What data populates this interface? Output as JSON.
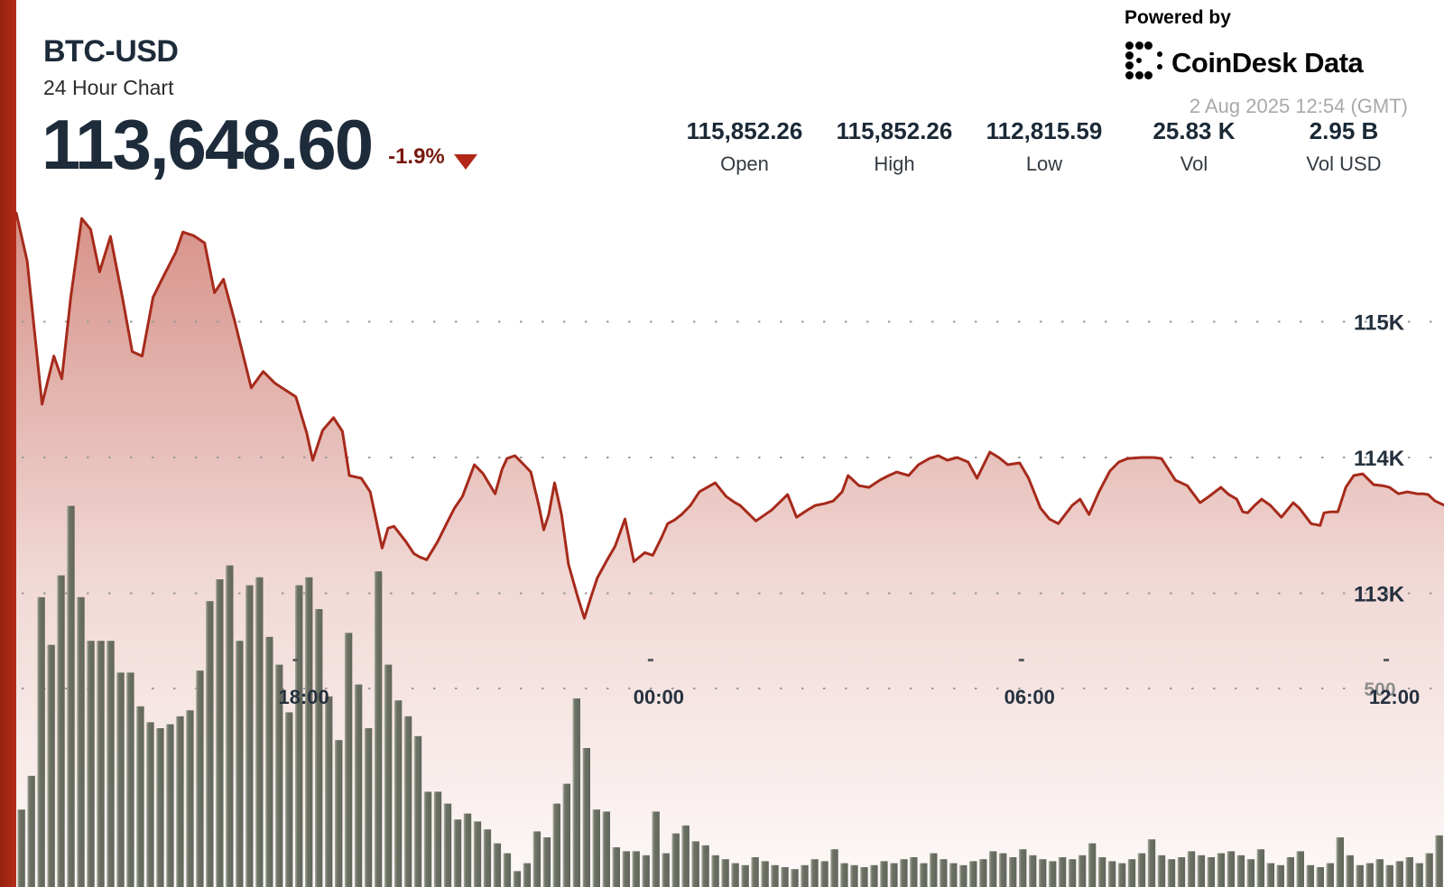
{
  "header": {
    "symbol": "BTC-USD",
    "period": "24 Hour Chart",
    "price": "113,648.60",
    "change_pct": "-1.9%",
    "direction": "down"
  },
  "brand": {
    "powered_by": "Powered by",
    "name": "CoinDesk Data",
    "timestamp": "2 Aug 2025 12:54 (GMT)"
  },
  "stats": [
    {
      "value": "115,852.26",
      "label": "Open"
    },
    {
      "value": "115,852.26",
      "label": "High"
    },
    {
      "value": "112,815.59",
      "label": "Low"
    },
    {
      "value": "25.83 K",
      "label": "Vol"
    },
    {
      "value": "2.95 B",
      "label": "Vol USD"
    }
  ],
  "colors": {
    "accent_red": "#b02a18",
    "line_red": "#a62a1b",
    "fill_red": "#b02a18",
    "volume_bar": "#6d7265",
    "volume_bar_highlight": "#a9ae9e",
    "navy_text": "#25313e",
    "grid_dot": "#9a9a9a",
    "muted_text": "#8d8d8d",
    "change_red": "#78190e"
  },
  "chart_data": {
    "type": "area",
    "title": "BTC-USD 24 Hour Chart",
    "legend": false,
    "grid": "dotted horizontal",
    "open": 115852.26,
    "high": 115852.26,
    "low": 112815.59,
    "last": 113648.6,
    "change_pct": -1.9,
    "volume_display": "25.83 K",
    "volume_usd_display": "2.95 B",
    "x_axis": {
      "unit": "minutes from window start (12:54 GMT)",
      "range": [
        0,
        1440
      ],
      "ticks": [
        {
          "label": "18:00",
          "t": 290
        },
        {
          "label": "00:00",
          "t": 648
        },
        {
          "label": "06:00",
          "t": 1022
        },
        {
          "label": "12:00",
          "t": 1390
        }
      ]
    },
    "y_axis": {
      "unit": "USD",
      "ticks": [
        {
          "label": "115K",
          "value": 115000
        },
        {
          "label": "114K",
          "value": 114000
        },
        {
          "label": "113K",
          "value": 113000
        }
      ]
    },
    "volume_axis": {
      "tick_label": "500",
      "tick_value": 500
    },
    "series": [
      {
        "name": "BTC-USD price",
        "kind": "line-area",
        "points": [
          [
            0,
            115800
          ],
          [
            11,
            115447
          ],
          [
            26,
            114393
          ],
          [
            38,
            114747
          ],
          [
            46,
            114580
          ],
          [
            55,
            115180
          ],
          [
            66,
            115760
          ],
          [
            75,
            115680
          ],
          [
            84,
            115367
          ],
          [
            95,
            115627
          ],
          [
            107,
            115180
          ],
          [
            117,
            114780
          ],
          [
            127,
            114747
          ],
          [
            138,
            115180
          ],
          [
            147,
            115313
          ],
          [
            161,
            115513
          ],
          [
            168,
            115660
          ],
          [
            179,
            115633
          ],
          [
            190,
            115580
          ],
          [
            200,
            115213
          ],
          [
            209,
            115313
          ],
          [
            220,
            115013
          ],
          [
            237,
            114513
          ],
          [
            249,
            114633
          ],
          [
            261,
            114547
          ],
          [
            282,
            114447
          ],
          [
            293,
            114180
          ],
          [
            299,
            113980
          ],
          [
            309,
            114200
          ],
          [
            320,
            114293
          ],
          [
            329,
            114193
          ],
          [
            336,
            113867
          ],
          [
            348,
            113847
          ],
          [
            357,
            113747
          ],
          [
            369,
            113333
          ],
          [
            375,
            113480
          ],
          [
            381,
            113493
          ],
          [
            393,
            113380
          ],
          [
            401,
            113293
          ],
          [
            407,
            113267
          ],
          [
            414,
            113247
          ],
          [
            425,
            113380
          ],
          [
            434,
            113513
          ],
          [
            442,
            113627
          ],
          [
            450,
            113713
          ],
          [
            462,
            113947
          ],
          [
            471,
            113880
          ],
          [
            483,
            113733
          ],
          [
            490,
            113913
          ],
          [
            495,
            113993
          ],
          [
            503,
            114013
          ],
          [
            512,
            113947
          ],
          [
            519,
            113893
          ],
          [
            527,
            113647
          ],
          [
            532,
            113467
          ],
          [
            537,
            113580
          ],
          [
            543,
            113813
          ],
          [
            550,
            113580
          ],
          [
            557,
            113213
          ],
          [
            566,
            112980
          ],
          [
            573,
            112816
          ],
          [
            580,
            112980
          ],
          [
            586,
            113113
          ],
          [
            595,
            113233
          ],
          [
            604,
            113347
          ],
          [
            614,
            113547
          ],
          [
            623,
            113233
          ],
          [
            634,
            113300
          ],
          [
            642,
            113280
          ],
          [
            651,
            113413
          ],
          [
            657,
            113513
          ],
          [
            664,
            113540
          ],
          [
            671,
            113580
          ],
          [
            680,
            113647
          ],
          [
            689,
            113747
          ],
          [
            705,
            113813
          ],
          [
            716,
            113713
          ],
          [
            725,
            113667
          ],
          [
            730,
            113647
          ],
          [
            746,
            113533
          ],
          [
            762,
            113613
          ],
          [
            778,
            113727
          ],
          [
            787,
            113560
          ],
          [
            798,
            113613
          ],
          [
            806,
            113647
          ],
          [
            815,
            113660
          ],
          [
            824,
            113680
          ],
          [
            833,
            113747
          ],
          [
            839,
            113867
          ],
          [
            850,
            113793
          ],
          [
            860,
            113780
          ],
          [
            871,
            113833
          ],
          [
            880,
            113867
          ],
          [
            888,
            113893
          ],
          [
            900,
            113867
          ],
          [
            910,
            113947
          ],
          [
            921,
            113993
          ],
          [
            930,
            114013
          ],
          [
            939,
            113980
          ],
          [
            949,
            114000
          ],
          [
            960,
            113967
          ],
          [
            969,
            113847
          ],
          [
            982,
            114040
          ],
          [
            991,
            114000
          ],
          [
            1000,
            113947
          ],
          [
            1012,
            113960
          ],
          [
            1021,
            113847
          ],
          [
            1033,
            113627
          ],
          [
            1042,
            113547
          ],
          [
            1051,
            113513
          ],
          [
            1065,
            113647
          ],
          [
            1073,
            113693
          ],
          [
            1082,
            113580
          ],
          [
            1092,
            113747
          ],
          [
            1103,
            113900
          ],
          [
            1112,
            113967
          ],
          [
            1121,
            113993
          ],
          [
            1135,
            114000
          ],
          [
            1147,
            114000
          ],
          [
            1155,
            113993
          ],
          [
            1162,
            113913
          ],
          [
            1169,
            113833
          ],
          [
            1181,
            113793
          ],
          [
            1194,
            113667
          ],
          [
            1203,
            113713
          ],
          [
            1215,
            113780
          ],
          [
            1223,
            113727
          ],
          [
            1231,
            113693
          ],
          [
            1237,
            113600
          ],
          [
            1242,
            113593
          ],
          [
            1249,
            113647
          ],
          [
            1256,
            113693
          ],
          [
            1265,
            113647
          ],
          [
            1276,
            113560
          ],
          [
            1288,
            113667
          ],
          [
            1294,
            113627
          ],
          [
            1306,
            113513
          ],
          [
            1315,
            113500
          ],
          [
            1319,
            113593
          ],
          [
            1326,
            113600
          ],
          [
            1333,
            113600
          ],
          [
            1341,
            113780
          ],
          [
            1349,
            113867
          ],
          [
            1358,
            113880
          ],
          [
            1369,
            113800
          ],
          [
            1378,
            113793
          ],
          [
            1385,
            113780
          ],
          [
            1394,
            113733
          ],
          [
            1403,
            113747
          ],
          [
            1413,
            113733
          ],
          [
            1419,
            113733
          ],
          [
            1424,
            113727
          ],
          [
            1431,
            113680
          ],
          [
            1440,
            113649
          ]
        ]
      },
      {
        "name": "Volume",
        "kind": "bars",
        "bar_interval_minutes": 10,
        "values": [
          195,
          280,
          730,
          610,
          785,
          960,
          730,
          620,
          620,
          620,
          540,
          540,
          455,
          415,
          400,
          410,
          430,
          445,
          545,
          720,
          775,
          810,
          620,
          760,
          780,
          630,
          560,
          440,
          760,
          780,
          700,
          480,
          370,
          640,
          510,
          400,
          795,
          560,
          470,
          430,
          380,
          240,
          240,
          210,
          170,
          185,
          165,
          145,
          110,
          85,
          40,
          60,
          140,
          125,
          210,
          260,
          475,
          350,
          195,
          190,
          100,
          90,
          90,
          80,
          190,
          85,
          135,
          155,
          115,
          105,
          80,
          70,
          60,
          55,
          75,
          65,
          55,
          50,
          45,
          55,
          70,
          65,
          95,
          60,
          55,
          50,
          55,
          65,
          60,
          70,
          75,
          60,
          85,
          70,
          60,
          55,
          65,
          70,
          90,
          85,
          75,
          95,
          80,
          70,
          65,
          75,
          70,
          80,
          110,
          75,
          65,
          60,
          70,
          85,
          120,
          80,
          70,
          75,
          90,
          80,
          75,
          85,
          90,
          80,
          70,
          95,
          60,
          55,
          75,
          90,
          55,
          50,
          60,
          125,
          80,
          55,
          60,
          70,
          55,
          65,
          75,
          60,
          85,
          130
        ]
      }
    ]
  }
}
